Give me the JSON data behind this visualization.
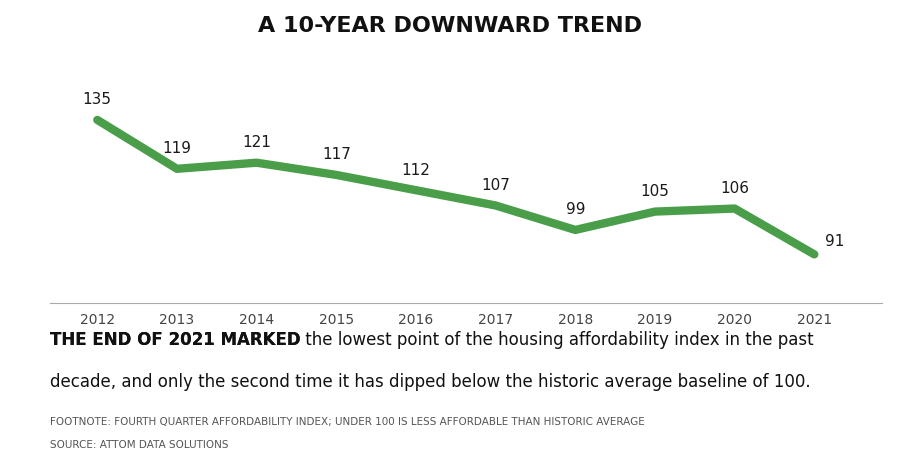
{
  "title": "A 10-YEAR DOWNWARD TREND",
  "years": [
    2012,
    2013,
    2014,
    2015,
    2016,
    2017,
    2018,
    2019,
    2020,
    2021
  ],
  "values": [
    135,
    119,
    121,
    117,
    112,
    107,
    99,
    105,
    106,
    91
  ],
  "line_color": "#4a9e4a",
  "line_width": 6,
  "bg_color": "#ffffff",
  "grid_color": "#cccccc",
  "title_fontsize": 16,
  "tick_fontsize": 10,
  "annotation_fontsize": 11,
  "body_bold": "THE END OF 2021 MARKED",
  "body_normal_line1": " the lowest point of the housing affordability index in the past",
  "body_line2": "decade, and only the second time it has dipped below the historic average baseline of 100.",
  "footnote1": "FOOTNOTE: FOURTH QUARTER AFFORDABILITY INDEX; UNDER 100 IS LESS AFFORDABLE THAN HISTORIC AVERAGE",
  "footnote2": "SOURCE: ATTOM DATA SOLUTIONS",
  "ylim_min": 75,
  "ylim_max": 150
}
